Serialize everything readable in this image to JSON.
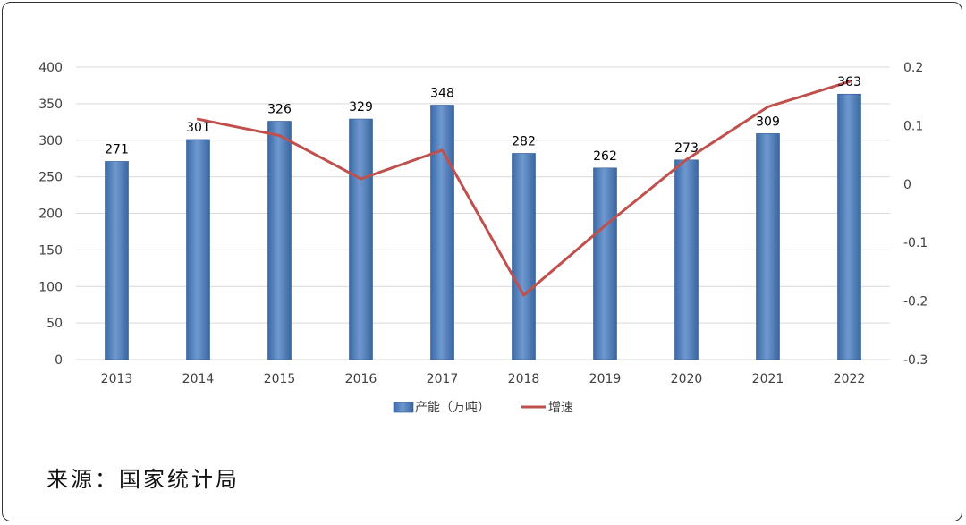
{
  "chart_data": {
    "type": "bar",
    "categories": [
      "2013",
      "2014",
      "2015",
      "2016",
      "2017",
      "2018",
      "2019",
      "2020",
      "2021",
      "2022"
    ],
    "series": [
      {
        "name": "产能（万吨）",
        "type": "bar",
        "axis": "left",
        "color": "#4f81bd",
        "values": [
          271,
          301,
          326,
          329,
          348,
          282,
          262,
          273,
          309,
          363
        ],
        "data_labels": [
          "271",
          "301",
          "326",
          "329",
          "348",
          "282",
          "262",
          "273",
          "309",
          "363"
        ]
      },
      {
        "name": "增速",
        "type": "line",
        "axis": "right",
        "color": "#c0504d",
        "values": [
          null,
          0.111,
          0.083,
          0.009,
          0.058,
          -0.19,
          -0.071,
          0.042,
          0.132,
          0.175
        ]
      }
    ],
    "y_left": {
      "lim": [
        0,
        400
      ],
      "ticks": [
        "0",
        "50",
        "100",
        "150",
        "200",
        "250",
        "300",
        "350",
        "400"
      ]
    },
    "y_right": {
      "lim": [
        -0.3,
        0.2
      ],
      "ticks": [
        "-0.3",
        "-0.2",
        "-0.1",
        "0",
        "0.1",
        "0.2"
      ]
    },
    "grid": true,
    "legend_position": "bottom"
  },
  "source_text": "来源：国家统计局"
}
